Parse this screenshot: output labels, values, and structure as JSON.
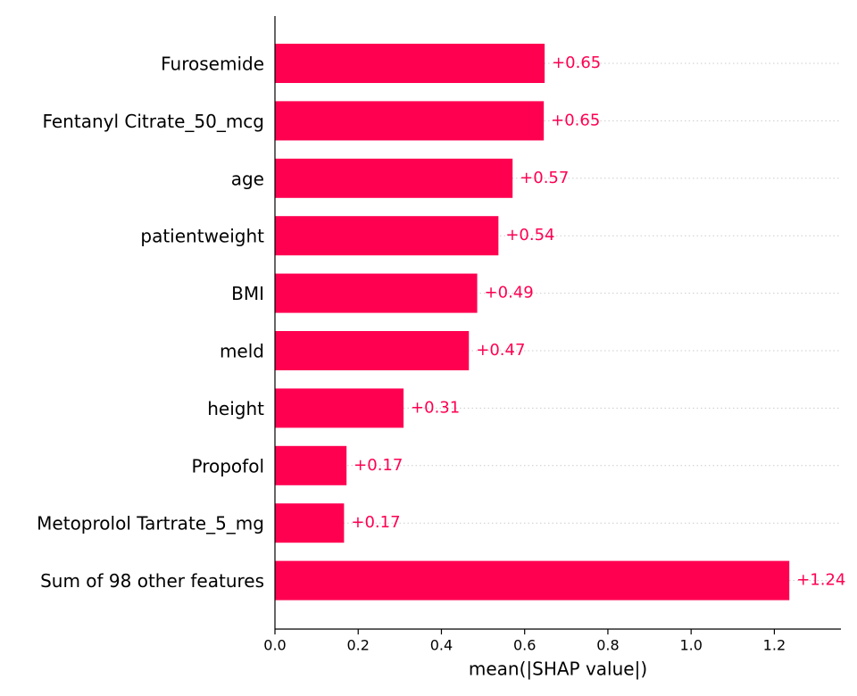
{
  "chart_data": {
    "type": "bar",
    "orientation": "horizontal",
    "x_label": "mean(|SHAP value|)",
    "categories": [
      "Furosemide",
      "Fentanyl Citrate_50_mcg",
      "age",
      "patientweight",
      "BMI",
      "meld",
      "height",
      "Propofol",
      "Metoprolol Tartrate_5_mg",
      "Sum of 98 other features"
    ],
    "values": [
      0.648,
      0.646,
      0.571,
      0.537,
      0.486,
      0.466,
      0.309,
      0.172,
      0.166,
      1.236
    ],
    "value_labels": [
      "+0.65",
      "+0.65",
      "+0.57",
      "+0.54",
      "+0.49",
      "+0.47",
      "+0.31",
      "+0.17",
      "+0.17",
      "+1.24"
    ],
    "color": "#ff0051",
    "xlim": [
      0,
      1.36
    ],
    "xticks": [
      {
        "value": 0,
        "label": "0.0"
      },
      0.2,
      0.4,
      0.6,
      0.8,
      {
        "value": 1,
        "label": "1.0"
      },
      1.2
    ],
    "grid": true
  }
}
